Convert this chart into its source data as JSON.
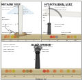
{
  "bg": "#f2efe8",
  "white": "#ffffff",
  "gray_light": "#d8d4cc",
  "gray_mid": "#aaaaaa",
  "gray_dark": "#555555",
  "tan": "#c8b890",
  "tan2": "#b8a878",
  "brown": "#907050",
  "blue_light": "#c0d8e8",
  "blue_mid": "#90b8d0",
  "smoke_white": "#e8e8e0",
  "black_smoke": "#222222",
  "red_fauna": "#c84030",
  "orange_fauna": "#d07030",
  "yellow_fauna": "#c8a020",
  "green_fauna": "#608040",
  "border": "#888888",
  "text_dark": "#222222",
  "text_gray": "#666666",
  "arrow_color": "#888888"
}
